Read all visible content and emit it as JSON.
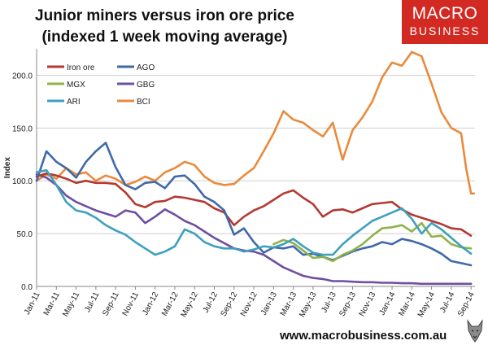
{
  "header": {
    "title_line1": "Junior miners versus iron ore price",
    "title_line2": "(indexed 1 week moving average)"
  },
  "logo": {
    "line1": "MACRO",
    "line2": "BUSINESS"
  },
  "footer": {
    "url": "www.macrobusiness.com.au"
  },
  "colors": {
    "iron_ore": "#b23a32",
    "AGO": "#3f69a8",
    "MGX": "#8fb24a",
    "GBG": "#6f4fa0",
    "ARI": "#3fa0bd",
    "BCI": "#ea8a3c",
    "logo_bg": "#d22a23",
    "grid": "#d0d0d0",
    "axis": "#888888"
  },
  "chart_data": {
    "type": "line",
    "ylabel": "Index",
    "ylim": [
      0,
      225
    ],
    "yticks": [
      0,
      50,
      100,
      150,
      200
    ],
    "ytick_labels": [
      "0.0",
      "50.0",
      "100.0",
      "150.0",
      "200.0"
    ],
    "xlim": [
      0,
      44.4
    ],
    "xtick_labels": [
      "Jan-11",
      "Mar-11",
      "May-11",
      "Jul-11",
      "Sep-11",
      "Nov-11",
      "Jan-12",
      "Mar-12",
      "May-12",
      "Jul-12",
      "Sep-12",
      "Nov-12",
      "Jan-13",
      "Mar-13",
      "May-13",
      "Jul-13",
      "Sep-13",
      "Nov-13",
      "Jan-14",
      "Mar-14",
      "May-14",
      "Jul-14",
      "Sep-14"
    ],
    "xtick_months": [
      0,
      2,
      4,
      6,
      8,
      10,
      12,
      14,
      16,
      18,
      20,
      22,
      24,
      26,
      28,
      30,
      32,
      34,
      36,
      38,
      40,
      42,
      44
    ],
    "legend": {
      "position": "top-left",
      "entries": [
        "Iron ore",
        "AGO",
        "MGX",
        "GBG",
        "ARI",
        "BCI"
      ]
    },
    "series": [
      {
        "name": "Iron ore",
        "color": "#b23a32",
        "points": [
          [
            0,
            104
          ],
          [
            1,
            107
          ],
          [
            2,
            105
          ],
          [
            3,
            102
          ],
          [
            4,
            98
          ],
          [
            5,
            100
          ],
          [
            6,
            98
          ],
          [
            7,
            98
          ],
          [
            8,
            97
          ],
          [
            9,
            89
          ],
          [
            10,
            78
          ],
          [
            11,
            75
          ],
          [
            12,
            80
          ],
          [
            13,
            81
          ],
          [
            14,
            85
          ],
          [
            15,
            84
          ],
          [
            16,
            82
          ],
          [
            17,
            80
          ],
          [
            18,
            74
          ],
          [
            19,
            70
          ],
          [
            20,
            58
          ],
          [
            21,
            66
          ],
          [
            22,
            72
          ],
          [
            23,
            76
          ],
          [
            24,
            82
          ],
          [
            25,
            88
          ],
          [
            26,
            91
          ],
          [
            27,
            84
          ],
          [
            28,
            78
          ],
          [
            29,
            66
          ],
          [
            30,
            72
          ],
          [
            31,
            73
          ],
          [
            32,
            70
          ],
          [
            33,
            74
          ],
          [
            34,
            78
          ],
          [
            35,
            79
          ],
          [
            36,
            80
          ],
          [
            37,
            73
          ],
          [
            38,
            68
          ],
          [
            39,
            65
          ],
          [
            40,
            62
          ],
          [
            41,
            59
          ],
          [
            42,
            55
          ],
          [
            43,
            54
          ],
          [
            44,
            48
          ]
        ]
      },
      {
        "name": "AGO",
        "color": "#3f69a8",
        "points": [
          [
            0,
            100
          ],
          [
            1,
            128
          ],
          [
            2,
            118
          ],
          [
            3,
            112
          ],
          [
            4,
            103
          ],
          [
            5,
            118
          ],
          [
            6,
            128
          ],
          [
            7,
            136
          ],
          [
            8,
            113
          ],
          [
            9,
            96
          ],
          [
            10,
            92
          ],
          [
            11,
            98
          ],
          [
            12,
            99
          ],
          [
            13,
            93
          ],
          [
            14,
            104
          ],
          [
            15,
            105
          ],
          [
            16,
            97
          ],
          [
            17,
            85
          ],
          [
            18,
            80
          ],
          [
            19,
            72
          ],
          [
            20,
            49
          ],
          [
            21,
            55
          ],
          [
            22,
            42
          ],
          [
            23,
            32
          ],
          [
            24,
            37
          ],
          [
            25,
            36
          ],
          [
            26,
            38
          ],
          [
            27,
            30
          ],
          [
            28,
            31
          ],
          [
            29,
            28
          ],
          [
            30,
            25
          ],
          [
            31,
            29
          ],
          [
            32,
            33
          ],
          [
            33,
            36
          ],
          [
            34,
            38
          ],
          [
            35,
            42
          ],
          [
            36,
            40
          ],
          [
            37,
            45
          ],
          [
            38,
            43
          ],
          [
            39,
            40
          ],
          [
            40,
            36
          ],
          [
            41,
            31
          ],
          [
            42,
            24
          ],
          [
            43,
            22
          ],
          [
            44,
            20
          ]
        ]
      },
      {
        "name": "MGX",
        "color": "#8fb24a",
        "points": [
          [
            24,
            40
          ],
          [
            25,
            44
          ],
          [
            26,
            41
          ],
          [
            27,
            34
          ],
          [
            28,
            27
          ],
          [
            29,
            28
          ],
          [
            30,
            24
          ],
          [
            31,
            30
          ],
          [
            32,
            34
          ],
          [
            33,
            40
          ],
          [
            34,
            48
          ],
          [
            35,
            55
          ],
          [
            36,
            56
          ],
          [
            37,
            58
          ],
          [
            38,
            52
          ],
          [
            39,
            60
          ],
          [
            40,
            47
          ],
          [
            41,
            48
          ],
          [
            42,
            40
          ],
          [
            43,
            37
          ],
          [
            44,
            36
          ]
        ]
      },
      {
        "name": "GBG",
        "color": "#6f4fa0",
        "points": [
          [
            0,
            106
          ],
          [
            1,
            103
          ],
          [
            2,
            96
          ],
          [
            3,
            86
          ],
          [
            4,
            80
          ],
          [
            5,
            76
          ],
          [
            6,
            72
          ],
          [
            7,
            69
          ],
          [
            8,
            66
          ],
          [
            9,
            72
          ],
          [
            10,
            70
          ],
          [
            11,
            60
          ],
          [
            12,
            66
          ],
          [
            13,
            73
          ],
          [
            14,
            68
          ],
          [
            15,
            62
          ],
          [
            16,
            58
          ],
          [
            17,
            52
          ],
          [
            18,
            46
          ],
          [
            19,
            41
          ],
          [
            20,
            36
          ],
          [
            21,
            34
          ],
          [
            22,
            33
          ],
          [
            23,
            30
          ],
          [
            24,
            24
          ],
          [
            25,
            18
          ],
          [
            26,
            14
          ],
          [
            27,
            10
          ],
          [
            28,
            8
          ],
          [
            29,
            7
          ],
          [
            30,
            5
          ],
          [
            31,
            5
          ],
          [
            32,
            4.5
          ],
          [
            33,
            4
          ],
          [
            34,
            4
          ],
          [
            35,
            3.5
          ],
          [
            36,
            3.5
          ],
          [
            37,
            3
          ],
          [
            38,
            3
          ],
          [
            39,
            2.5
          ],
          [
            40,
            2.5
          ],
          [
            41,
            2.5
          ],
          [
            42,
            2.5
          ],
          [
            43,
            2.5
          ],
          [
            44,
            2.5
          ]
        ]
      },
      {
        "name": "ARI",
        "color": "#3fa0bd",
        "points": [
          [
            0,
            108
          ],
          [
            1,
            110
          ],
          [
            2,
            96
          ],
          [
            3,
            80
          ],
          [
            4,
            72
          ],
          [
            5,
            70
          ],
          [
            6,
            65
          ],
          [
            7,
            58
          ],
          [
            8,
            53
          ],
          [
            9,
            49
          ],
          [
            10,
            42
          ],
          [
            11,
            36
          ],
          [
            12,
            30
          ],
          [
            13,
            33
          ],
          [
            14,
            38
          ],
          [
            15,
            54
          ],
          [
            16,
            50
          ],
          [
            17,
            42
          ],
          [
            18,
            38
          ],
          [
            19,
            36
          ],
          [
            20,
            36
          ],
          [
            21,
            33
          ],
          [
            22,
            35
          ],
          [
            23,
            38
          ],
          [
            24,
            37
          ],
          [
            25,
            40
          ],
          [
            26,
            45
          ],
          [
            27,
            38
          ],
          [
            28,
            32
          ],
          [
            29,
            30
          ],
          [
            30,
            30
          ],
          [
            31,
            40
          ],
          [
            32,
            48
          ],
          [
            33,
            55
          ],
          [
            34,
            62
          ],
          [
            35,
            66
          ],
          [
            36,
            70
          ],
          [
            37,
            74
          ],
          [
            38,
            64
          ],
          [
            39,
            50
          ],
          [
            40,
            60
          ],
          [
            41,
            54
          ],
          [
            42,
            46
          ],
          [
            43,
            38
          ],
          [
            44,
            31
          ]
        ]
      },
      {
        "name": "BCI",
        "color": "#ea8a3c",
        "points": [
          [
            0,
            100
          ],
          [
            1,
            106
          ],
          [
            2,
            102
          ],
          [
            3,
            112
          ],
          [
            4,
            106
          ],
          [
            5,
            108
          ],
          [
            6,
            100
          ],
          [
            7,
            105
          ],
          [
            8,
            102
          ],
          [
            9,
            96
          ],
          [
            10,
            99
          ],
          [
            11,
            104
          ],
          [
            12,
            100
          ],
          [
            13,
            108
          ],
          [
            14,
            112
          ],
          [
            15,
            118
          ],
          [
            16,
            115
          ],
          [
            17,
            104
          ],
          [
            18,
            98
          ],
          [
            19,
            96
          ],
          [
            20,
            97
          ],
          [
            21,
            105
          ],
          [
            22,
            112
          ],
          [
            23,
            128
          ],
          [
            24,
            145
          ],
          [
            25,
            166
          ],
          [
            26,
            158
          ],
          [
            27,
            155
          ],
          [
            28,
            148
          ],
          [
            29,
            142
          ],
          [
            30,
            155
          ],
          [
            31,
            120
          ],
          [
            32,
            148
          ],
          [
            33,
            160
          ],
          [
            34,
            175
          ],
          [
            35,
            198
          ],
          [
            36,
            212
          ],
          [
            37,
            209
          ],
          [
            38,
            222
          ],
          [
            39,
            218
          ],
          [
            40,
            192
          ],
          [
            41,
            165
          ],
          [
            42,
            150
          ],
          [
            43,
            145
          ],
          [
            43.5,
            112
          ],
          [
            44,
            88
          ],
          [
            44.3,
            88
          ]
        ]
      }
    ]
  }
}
